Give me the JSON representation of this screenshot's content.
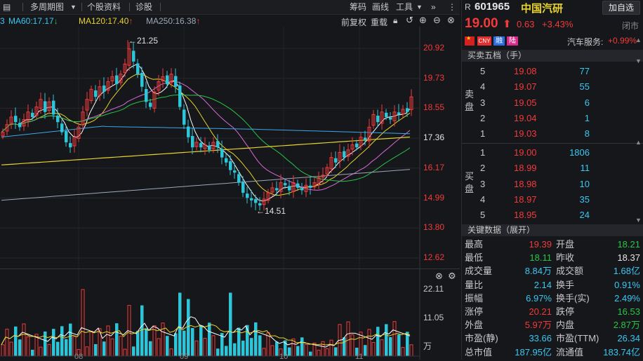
{
  "toolbar": {
    "left": [
      "多周期图",
      "个股资料",
      "诊股"
    ],
    "right": [
      "筹码",
      "画线",
      "工具"
    ],
    "collapse": "»"
  },
  "ma": {
    "ma60": "MA60:17.17",
    "ma120": "MA120:17.40",
    "ma250": "MA250:16.38"
  },
  "chart_tools": [
    "前复权",
    "重载"
  ],
  "axis": {
    "price_ticks": [
      "20.92",
      "19.73",
      "18.55",
      "17.36",
      "16.17",
      "14.99",
      "13.80",
      "12.62"
    ],
    "vol_ticks": [
      "22.11",
      "11.05",
      "万"
    ],
    "high_label": "←21.25",
    "low_label": "←14.51",
    "dates": [
      "08",
      "09",
      "10",
      "11"
    ]
  },
  "quote": {
    "prefix": "R",
    "code": "601965",
    "name": "中国汽研",
    "add_btn": "加自选",
    "price": "19.00",
    "change": "0.63",
    "pct": "+3.43%",
    "status": "闭市",
    "tags": [
      "CNY",
      "融",
      "陆"
    ],
    "sector": "汽车服务:",
    "sector_pct": "+0.99%"
  },
  "orderbook": {
    "title": "买卖五档（手）",
    "sell_label": "卖盘",
    "buy_label": "买盘",
    "sell": [
      {
        "lv": "5",
        "price": "19.08",
        "vol": "77"
      },
      {
        "lv": "4",
        "price": "19.07",
        "vol": "55"
      },
      {
        "lv": "3",
        "price": "19.05",
        "vol": "6"
      },
      {
        "lv": "2",
        "price": "19.04",
        "vol": "1"
      },
      {
        "lv": "1",
        "price": "19.03",
        "vol": "8"
      }
    ],
    "buy": [
      {
        "lv": "1",
        "price": "19.00",
        "vol": "1806"
      },
      {
        "lv": "2",
        "price": "18.99",
        "vol": "11"
      },
      {
        "lv": "3",
        "price": "18.98",
        "vol": "10"
      },
      {
        "lv": "4",
        "price": "18.97",
        "vol": "35"
      },
      {
        "lv": "5",
        "price": "18.95",
        "vol": "24"
      }
    ]
  },
  "stats": {
    "title": "关键数据（展开）",
    "rows": [
      {
        "k1": "最高",
        "v1": "19.39",
        "c1": "red",
        "k2": "开盘",
        "v2": "18.21",
        "c2": "green"
      },
      {
        "k1": "最低",
        "v1": "18.11",
        "c1": "green",
        "k2": "昨收",
        "v2": "18.37",
        "c2": "white"
      },
      {
        "k1": "成交量",
        "v1": "8.84万",
        "c1": "cyan",
        "k2": "成交额",
        "v2": "1.68亿",
        "c2": "cyan"
      },
      {
        "k1": "量比",
        "v1": "2.14",
        "c1": "cyan",
        "k2": "换手",
        "v2": "0.91%",
        "c2": "cyan"
      },
      {
        "k1": "振幅",
        "v1": "6.97%",
        "c1": "cyan",
        "k2": "换手(实)",
        "v2": "2.49%",
        "c2": "cyan"
      },
      {
        "k1": "涨停",
        "v1": "20.21",
        "c1": "red",
        "k2": "跌停",
        "v2": "16.53",
        "c2": "green"
      },
      {
        "k1": "外盘",
        "v1": "5.97万",
        "c1": "red",
        "k2": "内盘",
        "v2": "2.87万",
        "c2": "green"
      },
      {
        "k1": "市盈(静)",
        "v1": "33.66",
        "c1": "cyan",
        "k2": "市盈(TTM)",
        "v2": "26.34",
        "c2": "cyan"
      },
      {
        "k1": "总市值",
        "v1": "187.95亿",
        "c1": "cyan",
        "k2": "流通值",
        "v2": "183.74亿",
        "c2": "cyan"
      }
    ]
  },
  "colors": {
    "up": "#f23a3a",
    "down": "#27c547",
    "ma5": "#ffffff",
    "ma10": "#e8d22e",
    "ma20": "#d86ad8",
    "ma30": "#27c547",
    "ma60": "#39a8e8",
    "ma120": "#e8d22e",
    "ma250": "#9aa8b8"
  }
}
